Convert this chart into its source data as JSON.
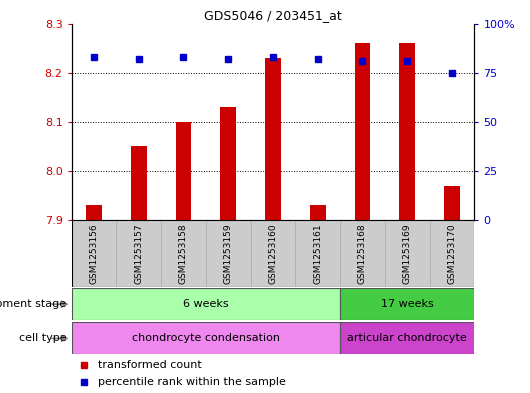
{
  "title": "GDS5046 / 203451_at",
  "samples": [
    "GSM1253156",
    "GSM1253157",
    "GSM1253158",
    "GSM1253159",
    "GSM1253160",
    "GSM1253161",
    "GSM1253168",
    "GSM1253169",
    "GSM1253170"
  ],
  "transformed_count": [
    7.93,
    8.05,
    8.1,
    8.13,
    8.23,
    7.93,
    8.26,
    8.26,
    7.97
  ],
  "percentile_rank": [
    83,
    82,
    83,
    82,
    83,
    82,
    81,
    81,
    75
  ],
  "ylim_left": [
    7.9,
    8.3
  ],
  "ylim_right": [
    0,
    100
  ],
  "yticks_left": [
    7.9,
    8.0,
    8.1,
    8.2,
    8.3
  ],
  "yticks_right": [
    0,
    25,
    50,
    75,
    100
  ],
  "ytick_labels_right": [
    "0",
    "25",
    "50",
    "75",
    "100%"
  ],
  "bar_color": "#cc0000",
  "dot_color": "#0000cc",
  "bar_width": 0.35,
  "groups": [
    {
      "label": "6 weeks",
      "start": 0,
      "end": 6,
      "color": "#aaffaa"
    },
    {
      "label": "17 weeks",
      "start": 6,
      "end": 9,
      "color": "#44cc44"
    }
  ],
  "cell_types": [
    {
      "label": "chondrocyte condensation",
      "start": 0,
      "end": 6,
      "color": "#ee88ee"
    },
    {
      "label": "articular chondrocyte",
      "start": 6,
      "end": 9,
      "color": "#cc44cc"
    }
  ],
  "dev_stage_label": "development stage",
  "cell_type_label": "cell type",
  "legend_bar_label": "transformed count",
  "legend_dot_label": "percentile rank within the sample",
  "sample_box_color": "#cccccc",
  "sample_box_edge": "#aaaaaa"
}
